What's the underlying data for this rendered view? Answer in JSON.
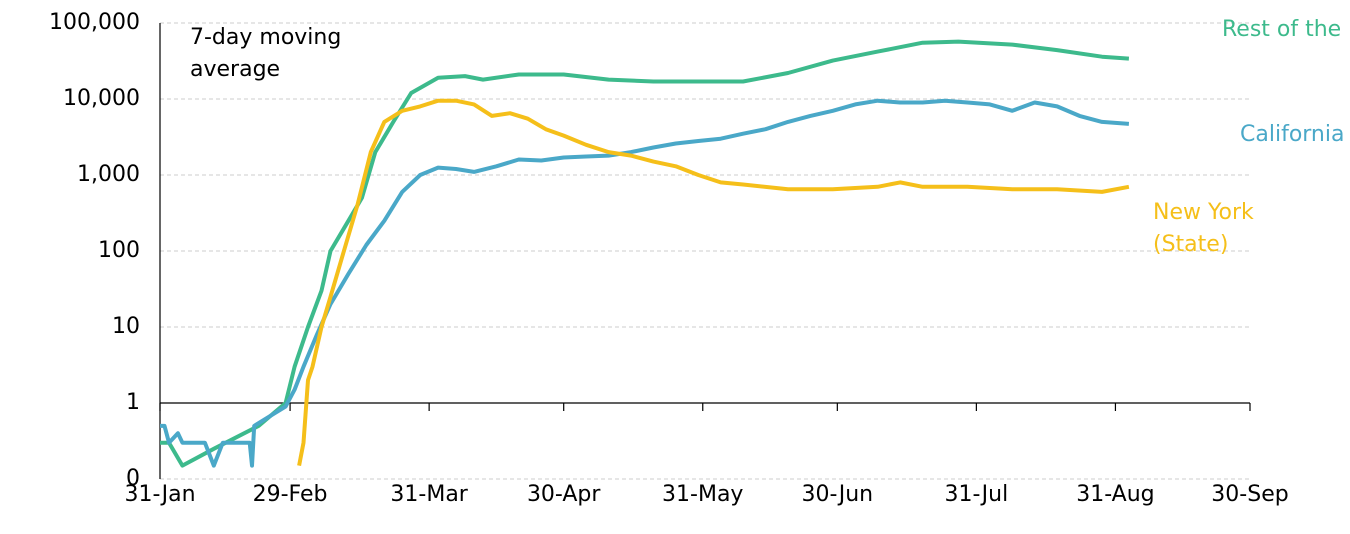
{
  "chart_data": {
    "type": "line",
    "annotation": "7-day moving average",
    "log_scale": true,
    "grid": true,
    "xlim": [
      0,
      243
    ],
    "xticks": [
      {
        "value": 0,
        "label": "31-Jan"
      },
      {
        "value": 29,
        "label": "29-Feb"
      },
      {
        "value": 60,
        "label": "31-Mar"
      },
      {
        "value": 90,
        "label": "30-Apr"
      },
      {
        "value": 121,
        "label": "31-May"
      },
      {
        "value": 151,
        "label": "30-Jun"
      },
      {
        "value": 182,
        "label": "31-Jul"
      },
      {
        "value": 213,
        "label": "31-Aug"
      },
      {
        "value": 243,
        "label": "30-Sep"
      }
    ],
    "ylim": [
      0.1,
      100000
    ],
    "yticks": [
      {
        "value": 0.1,
        "label": "0"
      },
      1,
      10,
      100,
      {
        "value": 1000,
        "label": "1,000"
      },
      {
        "value": 10000,
        "label": "10,000"
      },
      {
        "value": 100000,
        "label": "100,000"
      }
    ],
    "series": [
      {
        "name": "Rest of the US",
        "color": "#3dba8c",
        "x": [
          0,
          2,
          5,
          12,
          22,
          28,
          30,
          33,
          36,
          38,
          42,
          45,
          48,
          52,
          56,
          62,
          68,
          72,
          80,
          90,
          100,
          110,
          120,
          130,
          140,
          150,
          160,
          170,
          178,
          190,
          200,
          210,
          216
        ],
        "values": [
          0.3,
          0.3,
          0.15,
          0.25,
          0.5,
          1,
          3,
          10,
          30,
          100,
          250,
          500,
          2000,
          5000,
          12000,
          19000,
          20000,
          18000,
          21000,
          21000,
          18000,
          17000,
          17000,
          17000,
          22000,
          32000,
          42000,
          55000,
          57000,
          52000,
          44000,
          36000,
          34000
        ]
      },
      {
        "name": "California",
        "color": "#4aa8c8",
        "x": [
          0,
          1,
          2,
          4,
          5,
          10,
          12,
          14,
          20,
          20.5,
          21,
          25,
          28,
          30,
          32,
          35,
          38,
          42,
          46,
          50,
          54,
          58,
          62,
          66,
          70,
          75,
          80,
          85,
          90,
          95,
          100,
          105,
          110,
          115,
          120,
          125,
          130,
          135,
          140,
          145,
          150,
          155,
          160,
          165,
          170,
          175,
          180,
          185,
          190,
          195,
          200,
          205,
          210,
          216
        ],
        "values": [
          0.5,
          0.5,
          0.3,
          0.4,
          0.3,
          0.3,
          0.15,
          0.3,
          0.3,
          0.15,
          0.5,
          0.7,
          0.9,
          1.5,
          3,
          8,
          20,
          50,
          120,
          250,
          600,
          1000,
          1250,
          1200,
          1100,
          1300,
          1600,
          1550,
          1700,
          1750,
          1800,
          2000,
          2300,
          2600,
          2800,
          3000,
          3500,
          4000,
          5000,
          6000,
          7000,
          8500,
          9500,
          9000,
          9000,
          9500,
          9000,
          8500,
          7000,
          9000,
          8000,
          6000,
          5000,
          4700
        ]
      },
      {
        "name": "New York (State)",
        "color": "#f5bf1a",
        "x": [
          31,
          32,
          33,
          34,
          36,
          38,
          41,
          44,
          47,
          50,
          54,
          58,
          62,
          66,
          70,
          74,
          78,
          82,
          86,
          90,
          95,
          100,
          105,
          110,
          115,
          120,
          125,
          130,
          140,
          150,
          160,
          165,
          170,
          180,
          190,
          200,
          210,
          216
        ],
        "values": [
          0.15,
          0.3,
          2,
          3,
          10,
          25,
          100,
          400,
          2000,
          5000,
          7000,
          8000,
          9500,
          9500,
          8500,
          6000,
          6500,
          5500,
          4000,
          3300,
          2500,
          2000,
          1800,
          1500,
          1300,
          1000,
          800,
          750,
          650,
          650,
          700,
          800,
          700,
          700,
          650,
          650,
          600,
          700
        ]
      }
    ]
  }
}
